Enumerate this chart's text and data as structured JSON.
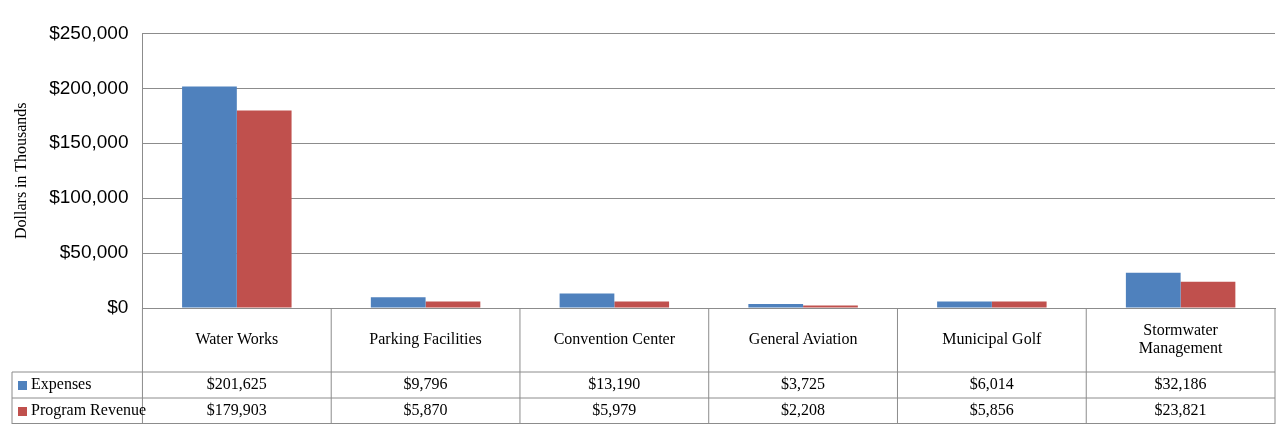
{
  "chart_data": {
    "type": "bar",
    "ylabel": "Dollars in Thousands",
    "categories": [
      "Water Works",
      "Parking Facilities",
      "Convention Center",
      "General Aviation",
      "Municipal Golf",
      "Stormwater Management"
    ],
    "series": [
      {
        "name": "Expenses",
        "color": "#4f81bd",
        "values": [
          201625,
          9796,
          13190,
          3725,
          6014,
          32186
        ],
        "value_labels": [
          "$201,625",
          "$9,796",
          "$13,190",
          "$3,725",
          "$6,014",
          "$32,186"
        ]
      },
      {
        "name": "Program Revenue",
        "color": "#c0504d",
        "values": [
          179903,
          5870,
          5979,
          2208,
          5856,
          23821
        ],
        "value_labels": [
          "$179,903",
          "$5,870",
          "$5,979",
          "$2,208",
          "$5,856",
          "$23,821"
        ]
      }
    ],
    "ylim": [
      0,
      250000
    ],
    "yticks": [
      {
        "value": 0,
        "label": "$0"
      },
      {
        "value": 50000,
        "label": "$50,000"
      },
      {
        "value": 100000,
        "label": "$100,000"
      },
      {
        "value": 150000,
        "label": "$150,000"
      },
      {
        "value": 200000,
        "label": "$200,000"
      },
      {
        "value": 250000,
        "label": "$250,000"
      }
    ],
    "grid": "y",
    "legend": "bottom left"
  }
}
